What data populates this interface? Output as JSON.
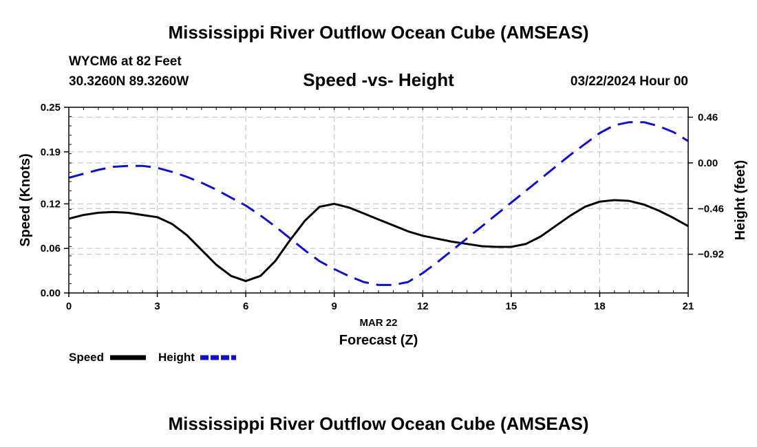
{
  "page": {
    "title_top": "Mississippi River Outflow Ocean Cube (AMSEAS)",
    "title_bottom": "Mississippi River Outflow Ocean Cube (AMSEAS)",
    "station": "WYCM6 at 82 Feet",
    "coords": "30.3260N  89.3260W",
    "datetime": "03/22/2024 Hour 00"
  },
  "chart_data": {
    "type": "line",
    "title": "Speed -vs- Height",
    "xlabel": "Forecast (Z)",
    "xdate": "MAR 22",
    "ylabel_left": "Speed (Knots)",
    "ylabel_right": "Height (feet)",
    "xlim": [
      0,
      21
    ],
    "ylim_left": [
      0,
      0.25
    ],
    "ylim_right": [
      -1.31,
      0.56
    ],
    "x_ticks": [
      0,
      3,
      6,
      9,
      12,
      15,
      18,
      21
    ],
    "x_tick_labels": [
      "0",
      "3",
      "6",
      "9",
      "12",
      "15",
      "18",
      "21"
    ],
    "y_left_ticks": [
      0.0,
      0.06,
      0.12,
      0.19,
      0.25
    ],
    "y_left_tick_labels": [
      "0.00",
      "0.06",
      "0.12",
      "0.19",
      "0.25"
    ],
    "y_right_ticks": [
      0.46,
      0.0,
      -0.46,
      -0.92
    ],
    "y_right_tick_labels": [
      "0.46",
      "0.00",
      "−0.46",
      "−0.92"
    ],
    "series": [
      {
        "name": "Speed",
        "axis": "left",
        "color": "#000000",
        "style": "solid",
        "x": [
          0,
          0.5,
          1,
          1.5,
          2,
          2.5,
          3,
          3.5,
          4,
          4.5,
          5,
          5.5,
          6,
          6.5,
          7,
          7.5,
          8,
          8.5,
          9,
          9.5,
          10,
          10.5,
          11,
          11.5,
          12,
          12.5,
          13,
          13.5,
          14,
          14.5,
          15,
          15.5,
          16,
          16.5,
          17,
          17.5,
          18,
          18.5,
          19,
          19.5,
          20,
          20.5,
          21
        ],
        "values": [
          0.1,
          0.105,
          0.108,
          0.109,
          0.108,
          0.105,
          0.102,
          0.093,
          0.078,
          0.058,
          0.038,
          0.023,
          0.016,
          0.023,
          0.043,
          0.071,
          0.097,
          0.116,
          0.12,
          0.115,
          0.107,
          0.099,
          0.091,
          0.083,
          0.077,
          0.073,
          0.069,
          0.066,
          0.063,
          0.062,
          0.062,
          0.066,
          0.076,
          0.09,
          0.104,
          0.116,
          0.123,
          0.125,
          0.124,
          0.119,
          0.111,
          0.101,
          0.09
        ]
      },
      {
        "name": "Height",
        "axis": "right",
        "color": "#1010cc",
        "style": "dashed",
        "x": [
          0,
          0.5,
          1,
          1.5,
          2,
          2.5,
          3,
          3.5,
          4,
          4.5,
          5,
          5.5,
          6,
          6.5,
          7,
          7.5,
          8,
          8.5,
          9,
          9.5,
          10,
          10.5,
          11,
          11.5,
          12,
          12.5,
          13,
          13.5,
          14,
          14.5,
          15,
          15.5,
          16,
          16.5,
          17,
          17.5,
          18,
          18.5,
          19,
          19.5,
          20,
          20.5,
          21
        ],
        "values": [
          -0.15,
          -0.11,
          -0.07,
          -0.04,
          -0.03,
          -0.03,
          -0.05,
          -0.09,
          -0.14,
          -0.2,
          -0.27,
          -0.35,
          -0.43,
          -0.53,
          -0.64,
          -0.76,
          -0.88,
          -0.99,
          -1.07,
          -1.14,
          -1.2,
          -1.23,
          -1.23,
          -1.2,
          -1.11,
          -1.0,
          -0.88,
          -0.76,
          -0.64,
          -0.52,
          -0.4,
          -0.28,
          -0.16,
          -0.04,
          0.08,
          0.19,
          0.3,
          0.38,
          0.41,
          0.41,
          0.37,
          0.31,
          0.22
        ]
      }
    ],
    "legend": [
      {
        "label": "Speed",
        "color": "#000000",
        "style": "solid"
      },
      {
        "label": "Height",
        "color": "#1010cc",
        "style": "dashed"
      }
    ]
  }
}
